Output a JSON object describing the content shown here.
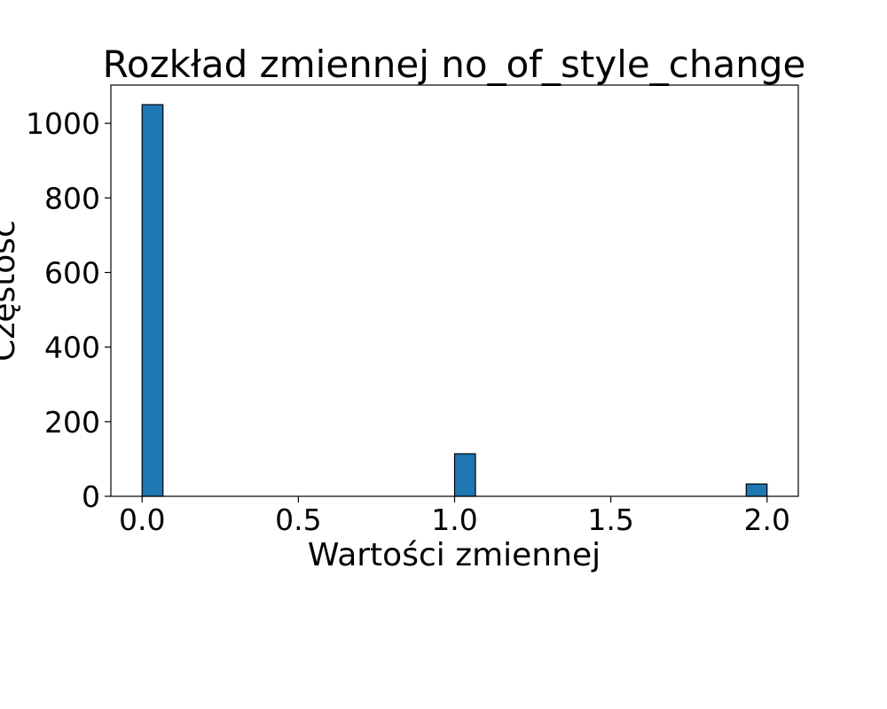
{
  "chart_data": {
    "type": "bar",
    "title": "Rozkład zmiennej no_of_style_change",
    "xlabel": "Wartości zmiennej",
    "ylabel": "Częstość",
    "bins": [
      {
        "x0": 0.0,
        "x1": 0.0667,
        "value": 1050
      },
      {
        "x0": 1.0,
        "x1": 1.0667,
        "value": 114
      },
      {
        "x0": 1.9333,
        "x1": 2.0,
        "value": 33
      }
    ],
    "xlim": [
      -0.1,
      2.1
    ],
    "ylim": [
      0,
      1102.5
    ],
    "xticks": [
      0.0,
      0.5,
      1.0,
      1.5,
      2.0
    ],
    "xtick_labels": [
      "0.0",
      "0.5",
      "1.0",
      "1.5",
      "2.0"
    ],
    "yticks": [
      0,
      200,
      400,
      600,
      800,
      1000
    ],
    "ytick_labels": [
      "0",
      "200",
      "400",
      "600",
      "800",
      "1000"
    ],
    "grid": false,
    "colors": {
      "bar_fill": "#1f77b4",
      "bar_edge": "#000000"
    }
  }
}
